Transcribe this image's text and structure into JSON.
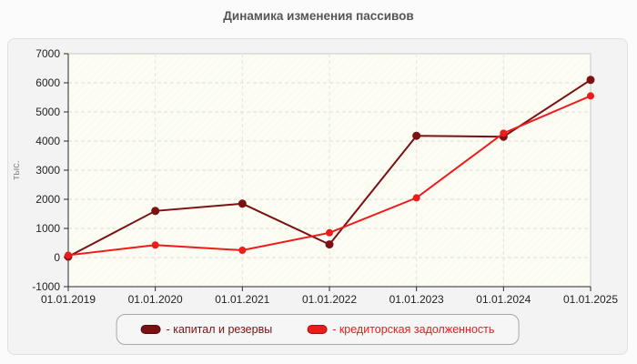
{
  "page": {
    "title": "Динамика изменения пассивов"
  },
  "chart_data": {
    "type": "line",
    "title": "Динамика изменения пассивов",
    "x": [
      "01.01.2019",
      "01.01.2020",
      "01.01.2021",
      "01.01.2022",
      "01.01.2023",
      "01.01.2024",
      "01.01.2025"
    ],
    "series": [
      {
        "name": "капитал и резервы",
        "color": "#7b1113",
        "marker_radius": 4.5,
        "values": [
          30,
          1600,
          1850,
          450,
          4180,
          4150,
          6100
        ]
      },
      {
        "name": "кредиторская задолженность",
        "color": "#ee1b1b",
        "marker_radius": 4.0,
        "values": [
          80,
          430,
          250,
          850,
          2050,
          4270,
          5550
        ]
      }
    ],
    "legend": [
      {
        "label": "- капитал и резервы"
      },
      {
        "label": "- кредиторская задолженность"
      }
    ],
    "legend_position": "bottom",
    "ylabel": "тыс.",
    "ylim": [
      -1000,
      7000
    ],
    "ytick_step": 1000,
    "grid": true
  },
  "style": {
    "axis_color": "#2a2a2a",
    "tick_label_color": "#222222",
    "grid_color": "#dcdcdc",
    "plot_border_color": "#c9c9c9",
    "plot_bg_base": "#fbfbee",
    "ylabel_color": "#8a8a8a"
  }
}
